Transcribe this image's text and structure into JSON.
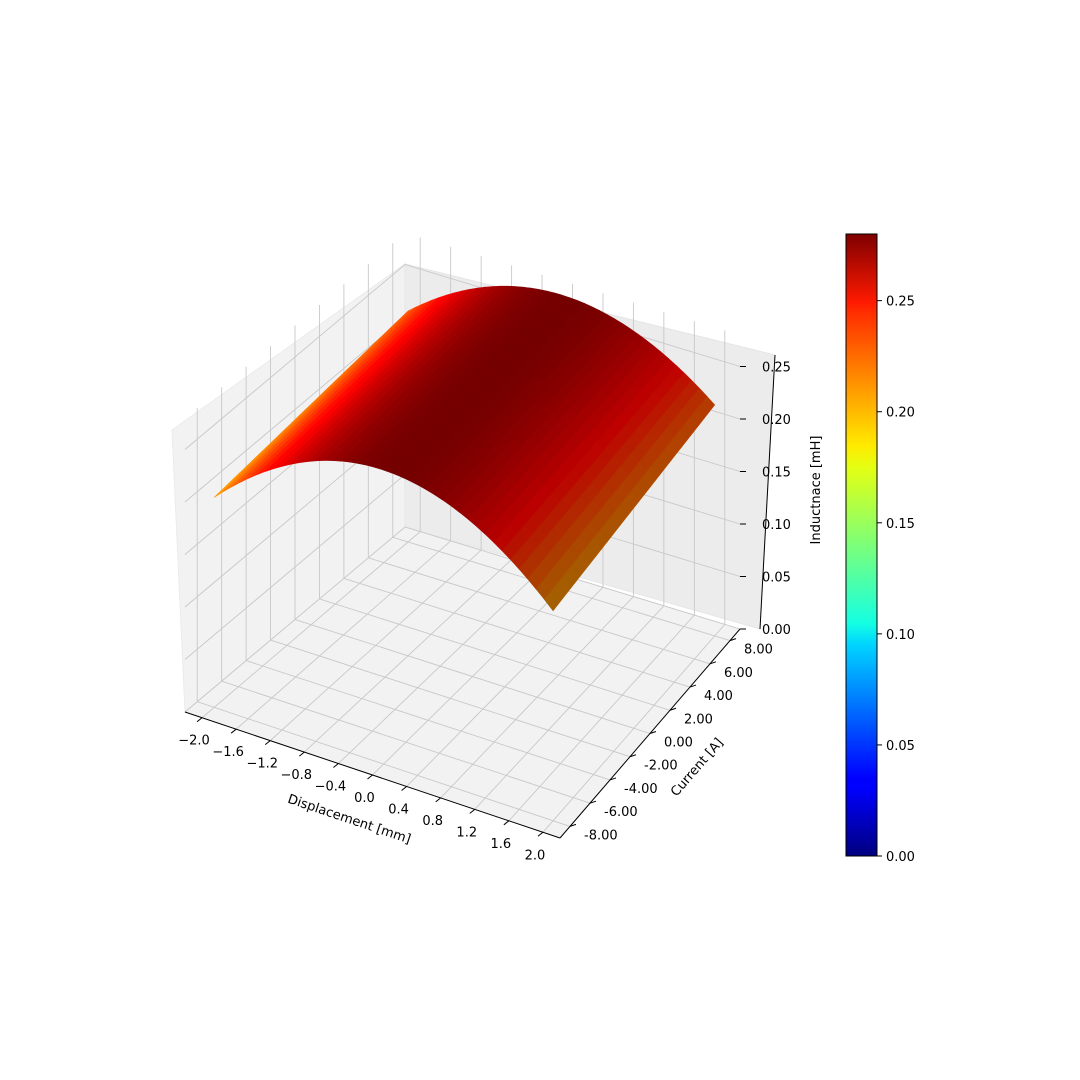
{
  "chart_data": {
    "type": "surface3d",
    "xlabel": "Displacement [mm]",
    "ylabel": "Current [A]",
    "zlabel": "Inductnace [mH]",
    "x_ticks": [
      "−2.0",
      "−1.6",
      "−1.2",
      "−0.8",
      "−0.4",
      "0.0",
      "0.4",
      "0.8",
      "1.2",
      "1.6",
      "2.0"
    ],
    "x_tick_values": [
      -2.0,
      -1.6,
      -1.2,
      -0.8,
      -0.4,
      0.0,
      0.4,
      0.8,
      1.2,
      1.6,
      2.0
    ],
    "y_ticks": [
      "-8.00",
      "-6.00",
      "-4.00",
      "-2.00",
      "0.00",
      "2.00",
      "4.00",
      "6.00",
      "8.00"
    ],
    "y_tick_values": [
      -8,
      -6,
      -4,
      -2,
      0,
      2,
      4,
      6,
      8
    ],
    "z_ticks": [
      "0.00",
      "0.05",
      "0.10",
      "0.15",
      "0.20",
      "0.25"
    ],
    "z_tick_values": [
      0.0,
      0.05,
      0.1,
      0.15,
      0.2,
      0.25
    ],
    "xlim": [
      -2.2,
      2.2
    ],
    "ylim": [
      -9.0,
      9.0
    ],
    "zlim": [
      0.0,
      0.28
    ],
    "colormap": "jet",
    "colorbar": {
      "ticks": [
        "0.00",
        "0.05",
        "0.10",
        "0.15",
        "0.20",
        "0.25"
      ],
      "tick_values": [
        0.0,
        0.05,
        0.1,
        0.15,
        0.2,
        0.25
      ],
      "range": [
        0.0,
        0.28
      ]
    },
    "surface": {
      "x_range": [
        -2.0,
        2.0
      ],
      "y_range": [
        -8.0,
        8.0
      ],
      "grid_x": 41,
      "grid_y": 31,
      "peak_value": 0.28,
      "corner_value_min_y": 0.2,
      "corner_value_max_y": 0.22,
      "shape": "quadratic in displacement, nearly linear in current"
    },
    "grid": true
  }
}
